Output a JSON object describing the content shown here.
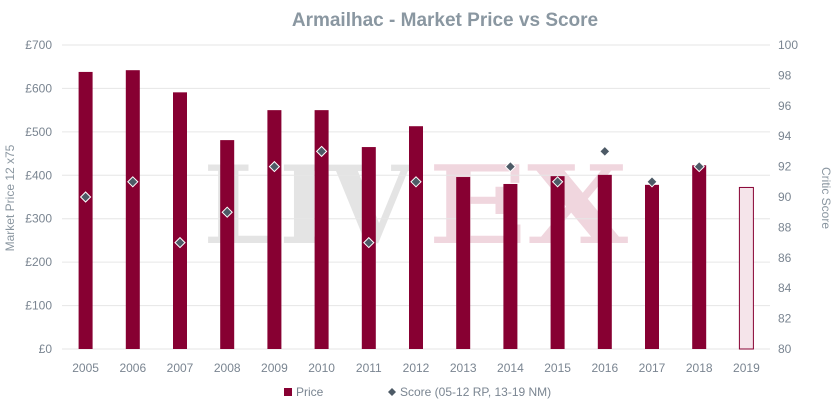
{
  "chart_data": {
    "type": "bar",
    "title": "Armailhac - Market Price vs Score",
    "watermark": {
      "left": "LIV",
      "right": "EX"
    },
    "categories": [
      "2005",
      "2006",
      "2007",
      "2008",
      "2009",
      "2010",
      "2011",
      "2012",
      "2013",
      "2014",
      "2015",
      "2016",
      "2017",
      "2018",
      "2019"
    ],
    "series": [
      {
        "name": "Price",
        "axis": "left",
        "type": "bar",
        "color": "#870032",
        "values": [
          638,
          642,
          591,
          481,
          550,
          550,
          465,
          513,
          396,
          380,
          398,
          401,
          378,
          423,
          372
        ],
        "highlight": {
          "index": 14,
          "fill": "#f5e4ea",
          "stroke": "#870032"
        }
      },
      {
        "name": "Score (05-12 RP, 13-19 NM)",
        "axis": "right",
        "type": "scatter",
        "marker": "diamond",
        "color": "#4d5a66",
        "values": [
          90,
          91,
          87,
          89,
          92,
          93,
          87,
          91,
          null,
          92,
          91,
          93,
          91,
          92,
          null
        ]
      }
    ],
    "ylabel": "Market Price 12 x75",
    "y2label": "Critic Score",
    "ylim": [
      0,
      700
    ],
    "y2lim": [
      80,
      100
    ],
    "yticks": [
      "£0",
      "£100",
      "£200",
      "£300",
      "£400",
      "£500",
      "£600",
      "£700"
    ],
    "y2ticks": [
      "80",
      "82",
      "84",
      "86",
      "88",
      "90",
      "92",
      "94",
      "96",
      "98",
      "100"
    ],
    "grid": true,
    "legend_position": "bottom"
  }
}
